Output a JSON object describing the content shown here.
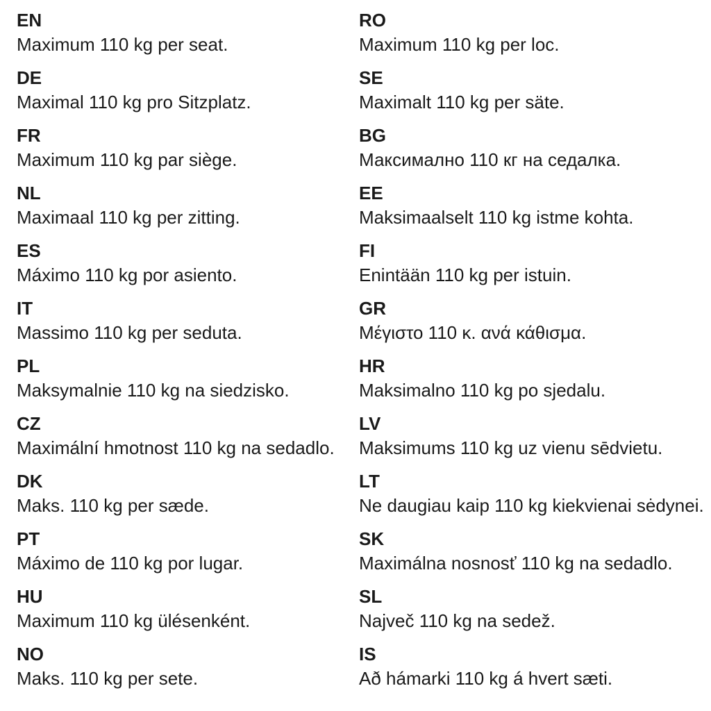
{
  "page": {
    "background_color": "#ffffff",
    "text_color": "#1a1a1a",
    "weight_value": "110 kg"
  },
  "columns": [
    {
      "items": [
        {
          "code": "EN",
          "text": "Maximum 110 kg per seat."
        },
        {
          "code": "DE",
          "text": "Maximal 110 kg pro Sitzplatz."
        },
        {
          "code": "FR",
          "text": "Maximum 110 kg par siège."
        },
        {
          "code": "NL",
          "text": "Maximaal 110 kg per zitting."
        },
        {
          "code": "ES",
          "text": "Máximo 110 kg por asiento."
        },
        {
          "code": "IT",
          "text": "Massimo 110 kg per seduta."
        },
        {
          "code": "PL",
          "text": "Maksymalnie 110 kg na siedzisko."
        },
        {
          "code": "CZ",
          "text": "Maximální hmotnost 110 kg na sedadlo."
        },
        {
          "code": "DK",
          "text": "Maks. 110 kg per sæde."
        },
        {
          "code": "PT",
          "text": "Máximo de 110 kg por lugar."
        },
        {
          "code": "HU",
          "text": "Maximum 110 kg ülésenként."
        },
        {
          "code": "NO",
          "text": "Maks. 110 kg per sete."
        }
      ]
    },
    {
      "items": [
        {
          "code": "RO",
          "text": "Maximum 110 kg per loc."
        },
        {
          "code": "SE",
          "text": "Maximalt 110 kg per säte."
        },
        {
          "code": "BG",
          "text": "Максимално 110 кг на седалка."
        },
        {
          "code": "EE",
          "text": "Maksimaalselt 110 kg istme kohta."
        },
        {
          "code": "FI",
          "text": "Enintään 110 kg per istuin."
        },
        {
          "code": "GR",
          "text": "Μέγιστο 110 κ. ανά κάθισμα."
        },
        {
          "code": "HR",
          "text": "Maksimalno 110 kg po sjedalu."
        },
        {
          "code": "LV",
          "text": "Maksimums 110 kg uz vienu sēdvietu."
        },
        {
          "code": "LT",
          "text": "Ne daugiau kaip 110 kg kiekvienai sėdynei."
        },
        {
          "code": "SK",
          "text": "Maximálna nosnosť 110 kg na sedadlo."
        },
        {
          "code": "SL",
          "text": "Največ 110 kg na sedež."
        },
        {
          "code": "IS",
          "text": "Að hámarki 110 kg á hvert sæti."
        }
      ]
    }
  ]
}
